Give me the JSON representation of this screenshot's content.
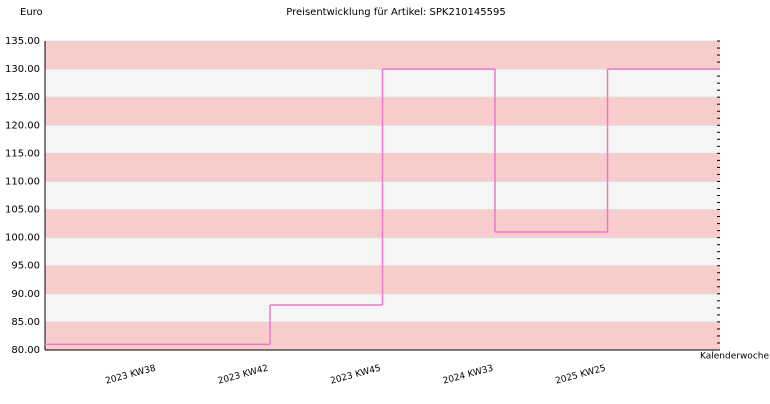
{
  "chart_data": {
    "type": "step",
    "title": "Preisentwicklung für Artikel: SPK210145595",
    "y_label": "Euro",
    "x_label": "Kalenderwoche",
    "categories": [
      null,
      "2023 KW38",
      "2023 KW42",
      "2023 KW45",
      "2024 KW33",
      "2025 KW25"
    ],
    "series": [
      {
        "name": "SPK210145595",
        "color": "#ee77cc",
        "values": [
          81,
          81,
          88,
          130,
          101,
          130
        ]
      }
    ],
    "ylim": [
      80,
      135
    ],
    "yticks": [
      {
        "value": 80,
        "label": "80.00"
      },
      {
        "value": 85,
        "label": "85.00"
      },
      {
        "value": 90,
        "label": "90.00"
      },
      {
        "value": 95,
        "label": "95.00"
      },
      {
        "value": 100,
        "label": "100.00"
      },
      {
        "value": 105,
        "label": "105.00"
      },
      {
        "value": 110,
        "label": "110.00"
      },
      {
        "value": 115,
        "label": "115.00"
      },
      {
        "value": 120,
        "label": "120.00"
      },
      {
        "value": 125,
        "label": "125.00"
      },
      {
        "value": 130,
        "label": "130.00"
      },
      {
        "value": 135,
        "label": "135.00"
      }
    ],
    "band_colors": [
      "#f9cccc",
      "#f5f5f5"
    ]
  }
}
